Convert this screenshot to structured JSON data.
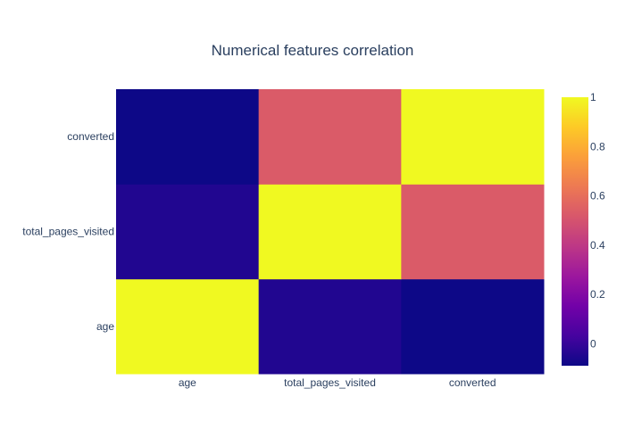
{
  "chart_data": {
    "type": "heatmap",
    "title": "Numerical features correlation",
    "x": [
      "age",
      "total_pages_visited",
      "converted"
    ],
    "y": [
      "age",
      "total_pages_visited",
      "converted"
    ],
    "z": [
      [
        1.0,
        -0.046,
        -0.089
      ],
      [
        -0.046,
        1.0,
        0.53
      ],
      [
        -0.089,
        0.53,
        1.0
      ]
    ],
    "colorscale": "plasma",
    "zmin": -0.089,
    "zmax": 1.0,
    "colorbar": {
      "ticks": [
        0,
        0.2,
        0.4,
        0.6,
        0.8,
        1
      ],
      "tick_labels": [
        "0",
        "0.2",
        "0.4",
        "0.6",
        "0.8",
        "1"
      ]
    }
  }
}
